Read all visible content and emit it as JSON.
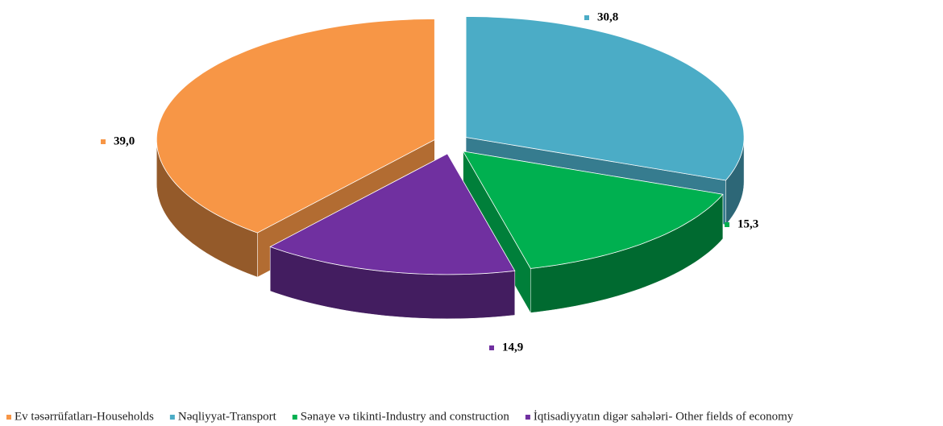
{
  "chart_data": {
    "type": "pie",
    "categories": [
      "Ev təsərrüfatları-Households",
      "Nəqliyyat-Transport",
      "Sənaye və tikinti-Industry and construction",
      "İqtisadiyyatın digər sahələri- Other fields of economy"
    ],
    "values": [
      39.0,
      30.8,
      15.3,
      14.9
    ],
    "value_labels": [
      "39,0",
      "30,8",
      "15,3",
      "14,9"
    ],
    "colors": [
      "#f79646",
      "#4bacc6",
      "#00b050",
      "#7030a0"
    ],
    "legend": "bottom"
  }
}
